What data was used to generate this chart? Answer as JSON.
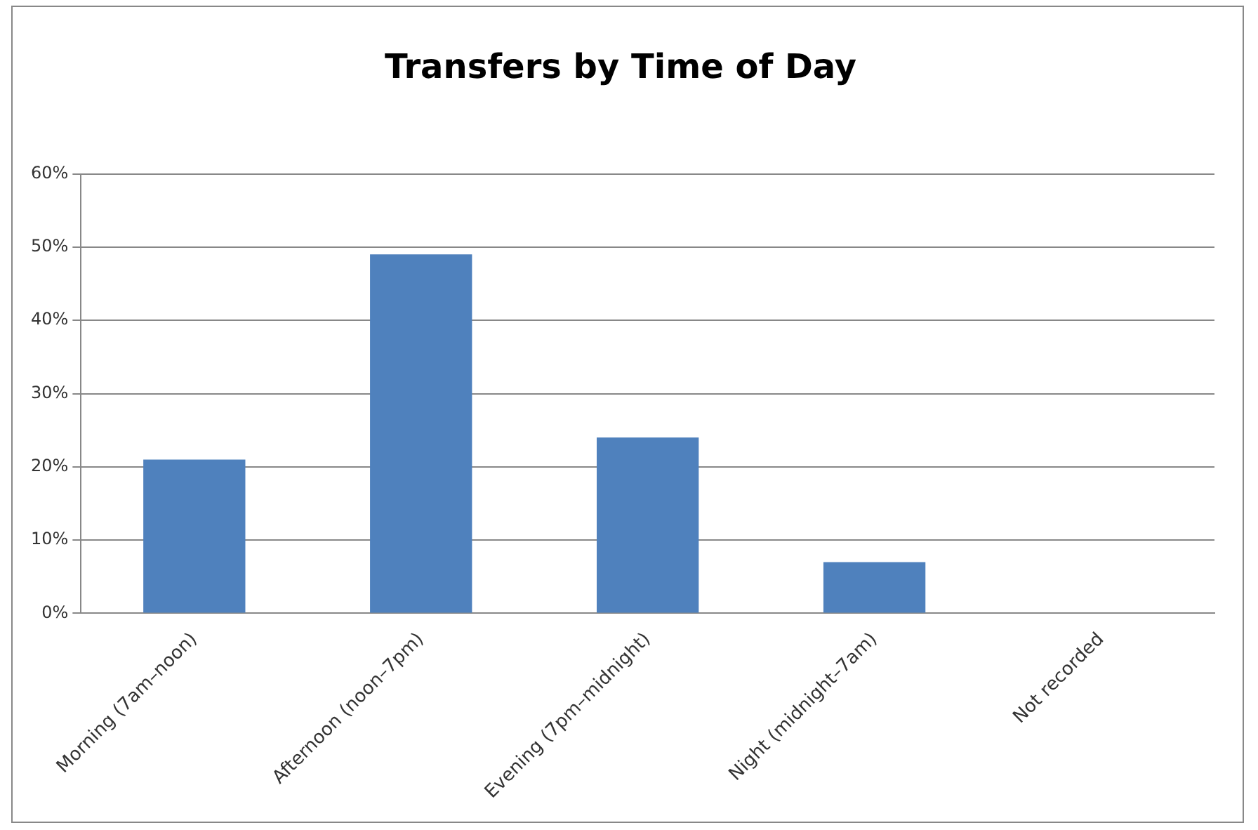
{
  "chart_data": {
    "type": "bar",
    "title": "Transfers by Time of Day",
    "categories": [
      "Morning (7am–noon)",
      "Afternoon (noon–7pm)",
      "Evening (7pm–midnight)",
      "Night (midnight–7am)",
      "Not recorded"
    ],
    "values": [
      21,
      49,
      24,
      7,
      0
    ],
    "color": "#4f81bd",
    "ylim": [
      0,
      60
    ],
    "yticks": [
      {
        "value": 0,
        "label": "0%"
      },
      {
        "value": 10,
        "label": "10%"
      },
      {
        "value": 20,
        "label": "20%"
      },
      {
        "value": 30,
        "label": "30%"
      },
      {
        "value": 40,
        "label": "40%"
      },
      {
        "value": 50,
        "label": "50%"
      },
      {
        "value": 60,
        "label": "60%"
      }
    ],
    "grid": "y",
    "legend": false
  }
}
